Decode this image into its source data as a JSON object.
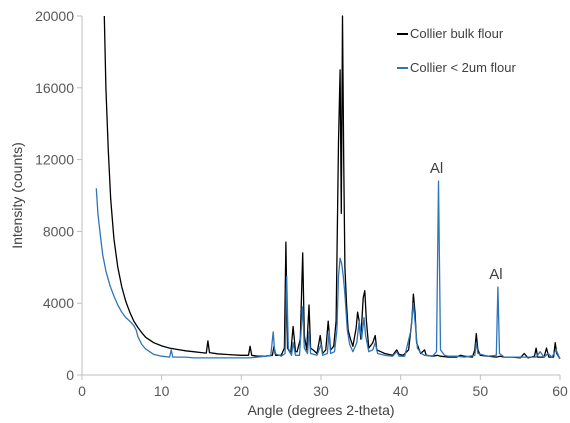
{
  "chart_data": {
    "type": "line",
    "title": "",
    "xlabel": "Angle (degrees 2-theta)",
    "ylabel": "Intensity (counts)",
    "xlim": [
      0,
      60
    ],
    "ylim": [
      0,
      20000
    ],
    "x_ticks": [
      0,
      10,
      20,
      30,
      40,
      50,
      60
    ],
    "y_ticks": [
      0,
      4000,
      8000,
      12000,
      16000,
      20000
    ],
    "x_tick_labels": [
      "0",
      "10",
      "20",
      "30",
      "40",
      "50",
      "60"
    ],
    "y_tick_labels": [
      "0",
      "4000",
      "8000",
      "12000",
      "16000",
      "20000"
    ],
    "grid": false,
    "legend_position": "top-right",
    "series": [
      {
        "name": "Collier bulk flour",
        "color": "#000000",
        "points": [
          [
            2.8,
            20000
          ],
          [
            3,
            16000
          ],
          [
            3.3,
            12500
          ],
          [
            3.6,
            9800
          ],
          [
            4,
            7600
          ],
          [
            4.5,
            6000
          ],
          [
            5,
            4900
          ],
          [
            5.5,
            4100
          ],
          [
            6,
            3500
          ],
          [
            6.5,
            3000
          ],
          [
            7,
            2650
          ],
          [
            7.5,
            2350
          ],
          [
            8,
            2100
          ],
          [
            9,
            1800
          ],
          [
            10,
            1620
          ],
          [
            11,
            1500
          ],
          [
            12,
            1420
          ],
          [
            13,
            1350
          ],
          [
            14,
            1300
          ],
          [
            15,
            1250
          ],
          [
            15.6,
            1220
          ],
          [
            15.8,
            1900
          ],
          [
            16.0,
            1250
          ],
          [
            17,
            1180
          ],
          [
            18,
            1150
          ],
          [
            19,
            1120
          ],
          [
            20,
            1100
          ],
          [
            20.9,
            1100
          ],
          [
            21.1,
            1600
          ],
          [
            21.3,
            1100
          ],
          [
            22,
            1050
          ],
          [
            23,
            1050
          ],
          [
            23.9,
            1100
          ],
          [
            24.1,
            1600
          ],
          [
            24.3,
            1100
          ],
          [
            25,
            1100
          ],
          [
            25.4,
            1500
          ],
          [
            25.6,
            7400
          ],
          [
            25.8,
            1500
          ],
          [
            26.2,
            1200
          ],
          [
            26.5,
            2700
          ],
          [
            26.8,
            1300
          ],
          [
            27,
            1300
          ],
          [
            27.4,
            2000
          ],
          [
            27.7,
            6800
          ],
          [
            27.9,
            2200
          ],
          [
            28.2,
            1400
          ],
          [
            28.5,
            3900
          ],
          [
            28.7,
            1500
          ],
          [
            29,
            1400
          ],
          [
            29.5,
            1200
          ],
          [
            29.9,
            2200
          ],
          [
            30.2,
            1200
          ],
          [
            30.6,
            1400
          ],
          [
            30.9,
            3000
          ],
          [
            31.2,
            1400
          ],
          [
            31.6,
            1600
          ],
          [
            31.9,
            3000
          ],
          [
            32.2,
            13000
          ],
          [
            32.4,
            17000
          ],
          [
            32.55,
            9000
          ],
          [
            32.7,
            20000
          ],
          [
            32.85,
            12000
          ],
          [
            33.0,
            6000
          ],
          [
            33.2,
            4000
          ],
          [
            33.4,
            2500
          ],
          [
            33.7,
            2000
          ],
          [
            34,
            1600
          ],
          [
            34.4,
            2600
          ],
          [
            34.6,
            3500
          ],
          [
            34.8,
            3000
          ],
          [
            35.0,
            2000
          ],
          [
            35.3,
            4300
          ],
          [
            35.5,
            4700
          ],
          [
            35.7,
            3000
          ],
          [
            36,
            1500
          ],
          [
            36.5,
            1800
          ],
          [
            36.8,
            2200
          ],
          [
            37.0,
            1400
          ],
          [
            37.5,
            1300
          ],
          [
            38,
            1200
          ],
          [
            38.5,
            1150
          ],
          [
            39,
            1100
          ],
          [
            39.5,
            1400
          ],
          [
            39.8,
            1150
          ],
          [
            40.3,
            1100
          ],
          [
            41,
            1400
          ],
          [
            41.4,
            3000
          ],
          [
            41.6,
            4500
          ],
          [
            41.8,
            3500
          ],
          [
            42,
            1800
          ],
          [
            42.5,
            1200
          ],
          [
            43,
            1400
          ],
          [
            43.2,
            1100
          ],
          [
            44,
            1050
          ],
          [
            44.6,
            1100
          ],
          [
            45,
            1050
          ],
          [
            46,
            1000
          ],
          [
            47,
            1000
          ],
          [
            47.5,
            1100
          ],
          [
            48,
            1050
          ],
          [
            49,
            1000
          ],
          [
            49.3,
            1400
          ],
          [
            49.5,
            2300
          ],
          [
            49.7,
            1400
          ],
          [
            50,
            1100
          ],
          [
            51,
            1050
          ],
          [
            52,
            1000
          ],
          [
            52.5,
            1050
          ],
          [
            53,
            1000
          ],
          [
            54,
            1000
          ],
          [
            55,
            950
          ],
          [
            55.5,
            1200
          ],
          [
            56,
            950
          ],
          [
            56.8,
            1050
          ],
          [
            57.0,
            1500
          ],
          [
            57.2,
            1000
          ],
          [
            58,
            1000
          ],
          [
            58.3,
            1500
          ],
          [
            58.6,
            1000
          ],
          [
            59.2,
            1000
          ],
          [
            59.4,
            1800
          ],
          [
            59.6,
            1200
          ],
          [
            60,
            900
          ]
        ]
      },
      {
        "name": "Collier < 2um flour",
        "color": "#2e75b6",
        "points": [
          [
            1.8,
            10400
          ],
          [
            2,
            9000
          ],
          [
            2.3,
            7800
          ],
          [
            2.6,
            6700
          ],
          [
            3,
            5800
          ],
          [
            3.5,
            5000
          ],
          [
            4,
            4400
          ],
          [
            4.5,
            3900
          ],
          [
            5,
            3500
          ],
          [
            5.5,
            3200
          ],
          [
            6,
            3000
          ],
          [
            6.5,
            2750
          ],
          [
            6.8,
            2500
          ],
          [
            7,
            2150
          ],
          [
            7.5,
            1700
          ],
          [
            8,
            1450
          ],
          [
            8.5,
            1300
          ],
          [
            9,
            1150
          ],
          [
            10,
            1050
          ],
          [
            11,
            1000
          ],
          [
            11.2,
            1400
          ],
          [
            11.4,
            1000
          ],
          [
            12,
            1000
          ],
          [
            13,
            1000
          ],
          [
            14,
            950
          ],
          [
            15,
            950
          ],
          [
            16,
            950
          ],
          [
            17,
            950
          ],
          [
            18,
            950
          ],
          [
            19,
            950
          ],
          [
            20,
            950
          ],
          [
            21,
            950
          ],
          [
            22,
            1000
          ],
          [
            23,
            1050
          ],
          [
            23.7,
            1100
          ],
          [
            24.0,
            2400
          ],
          [
            24.2,
            1200
          ],
          [
            25,
            1050
          ],
          [
            25.5,
            1200
          ],
          [
            25.7,
            5500
          ],
          [
            25.9,
            1500
          ],
          [
            26.3,
            1100
          ],
          [
            26.5,
            1800
          ],
          [
            26.8,
            1100
          ],
          [
            27.3,
            1100
          ],
          [
            27.7,
            3800
          ],
          [
            27.9,
            1500
          ],
          [
            28.3,
            1200
          ],
          [
            28.5,
            2400
          ],
          [
            28.7,
            1200
          ],
          [
            29.5,
            1100
          ],
          [
            30,
            1700
          ],
          [
            30.2,
            1100
          ],
          [
            30.8,
            1200
          ],
          [
            31,
            2400
          ],
          [
            31.2,
            1200
          ],
          [
            31.7,
            1300
          ],
          [
            32,
            2500
          ],
          [
            32.2,
            5500
          ],
          [
            32.4,
            6500
          ],
          [
            32.6,
            6200
          ],
          [
            32.8,
            5500
          ],
          [
            33.0,
            4500
          ],
          [
            33.3,
            2500
          ],
          [
            33.6,
            1700
          ],
          [
            34,
            1300
          ],
          [
            34.5,
            1800
          ],
          [
            34.8,
            3000
          ],
          [
            35.1,
            2000
          ],
          [
            35.4,
            3200
          ],
          [
            35.6,
            2200
          ],
          [
            36,
            1300
          ],
          [
            36.5,
            1400
          ],
          [
            36.8,
            1800
          ],
          [
            37.1,
            1200
          ],
          [
            38,
            1100
          ],
          [
            39,
            1050
          ],
          [
            39.5,
            1300
          ],
          [
            39.8,
            1050
          ],
          [
            40.5,
            1050
          ],
          [
            41.3,
            2500
          ],
          [
            41.6,
            4000
          ],
          [
            41.8,
            3000
          ],
          [
            42.1,
            1500
          ],
          [
            42.6,
            1200
          ],
          [
            43,
            1100
          ],
          [
            44,
            1050
          ],
          [
            44.5,
            1300
          ],
          [
            44.75,
            10800
          ],
          [
            45.0,
            1400
          ],
          [
            45.5,
            1100
          ],
          [
            46,
            1050
          ],
          [
            47,
            1050
          ],
          [
            48,
            1000
          ],
          [
            49.3,
            1100
          ],
          [
            49.5,
            1800
          ],
          [
            49.7,
            1200
          ],
          [
            50.5,
            1100
          ],
          [
            51,
            1050
          ],
          [
            52,
            1100
          ],
          [
            52.2,
            4900
          ],
          [
            52.4,
            1200
          ],
          [
            53,
            1000
          ],
          [
            54,
            1000
          ],
          [
            55,
            1000
          ],
          [
            56,
            1000
          ],
          [
            57,
            1000
          ],
          [
            57.5,
            1300
          ],
          [
            58,
            1000
          ],
          [
            58.5,
            1200
          ],
          [
            59,
            1000
          ],
          [
            59.5,
            1400
          ],
          [
            60,
            900
          ]
        ]
      }
    ],
    "annotations": [
      {
        "text": "Al",
        "x": 44.75,
        "y": 10800
      },
      {
        "text": "Al",
        "x": 52.2,
        "y": 4900
      }
    ]
  }
}
